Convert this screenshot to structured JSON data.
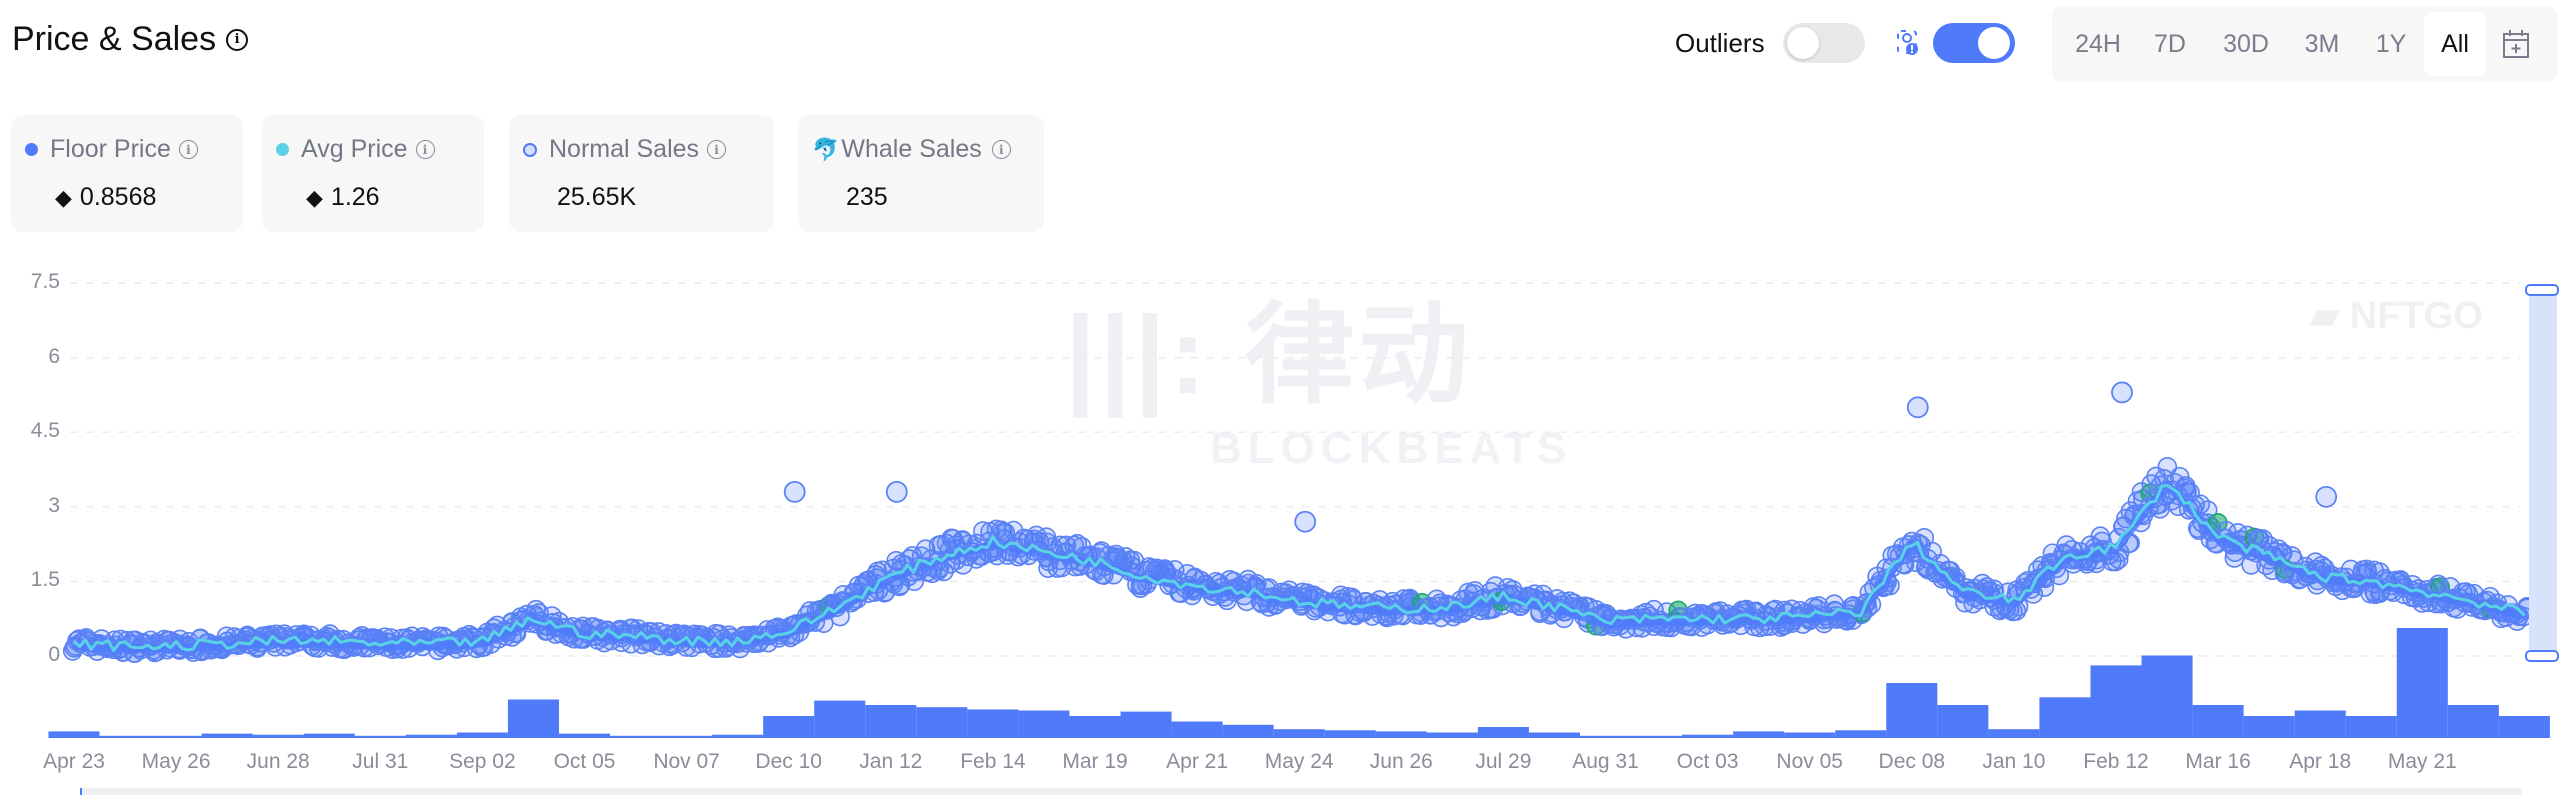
{
  "header": {
    "title": "Price & Sales",
    "info_icon": "info-icon",
    "outliers_label": "Outliers",
    "outliers_enabled": false,
    "whale_filter_enabled": true,
    "whale_filter_icon": "whale-alert-icon",
    "time_ranges": [
      "24H",
      "7D",
      "30D",
      "3M",
      "1Y",
      "All"
    ],
    "active_range": "All",
    "calendar_icon": "calendar-add-icon"
  },
  "cards": [
    {
      "label": "Floor Price",
      "value": "0.8568",
      "prefix_icon": "eth-icon",
      "marker": "dot",
      "color": "#4f7bfb"
    },
    {
      "label": "Avg Price",
      "value": "1.26",
      "prefix_icon": "eth-icon",
      "marker": "dot",
      "color": "#5ad2e6"
    },
    {
      "label": "Normal Sales",
      "value": "25.65K",
      "marker": "ring",
      "color": "#4f7bfb"
    },
    {
      "label": "Whale Sales",
      "value": "235",
      "marker": "whale-icon",
      "color": "#4f7bfb"
    }
  ],
  "watermarks": [
    "律动 BLOCKBEATS",
    "NFTGO"
  ],
  "chart_data": {
    "type": "scatter+line+bar",
    "y_ticks": [
      "0",
      "1.5",
      "3",
      "4.5",
      "6",
      "7.5"
    ],
    "ylim": [
      0,
      7.5
    ],
    "grid": true,
    "x_ticks": [
      "Apr 23",
      "May 26",
      "Jun 28",
      "Jul 31",
      "Sep 02",
      "Oct 05",
      "Nov 07",
      "Dec 10",
      "Jan 12",
      "Feb 14",
      "Mar 19",
      "Apr 21",
      "May 24",
      "Jun 26",
      "Jul 29",
      "Aug 31",
      "Oct 03",
      "Nov 05",
      "Dec 08",
      "Jan 10",
      "Feb 12",
      "Mar 16",
      "Apr 18",
      "May 21"
    ],
    "sampling": "two values per x-tick interval, starting at Apr 23",
    "avg_price": [
      0.25,
      0.2,
      0.2,
      0.25,
      0.3,
      0.3,
      0.25,
      0.25,
      0.3,
      0.75,
      0.45,
      0.4,
      0.3,
      0.3,
      0.5,
      1.0,
      1.6,
      2.0,
      2.3,
      2.1,
      1.9,
      1.6,
      1.4,
      1.3,
      1.1,
      1.0,
      0.95,
      1.0,
      1.2,
      1.0,
      0.7,
      0.75,
      0.75,
      0.75,
      0.8,
      0.9,
      2.3,
      1.3,
      1.1,
      2.0,
      2.2,
      3.5,
      2.4,
      2.0,
      1.6,
      1.5,
      1.3,
      1.1,
      0.86
    ],
    "relative_volume": [
      0.06,
      0.02,
      0.02,
      0.04,
      0.03,
      0.04,
      0.02,
      0.03,
      0.05,
      0.35,
      0.04,
      0.02,
      0.02,
      0.03,
      0.2,
      0.34,
      0.3,
      0.28,
      0.26,
      0.25,
      0.2,
      0.24,
      0.15,
      0.12,
      0.08,
      0.07,
      0.06,
      0.05,
      0.1,
      0.05,
      0.02,
      0.02,
      0.03,
      0.06,
      0.05,
      0.07,
      0.5,
      0.3,
      0.08,
      0.37,
      0.66,
      0.75,
      0.3,
      0.2,
      0.25,
      0.2,
      1.0,
      0.3,
      0.2
    ],
    "notable_sales": [
      {
        "tick": "Dec 08",
        "price": 5.0
      },
      {
        "tick": "Feb 12",
        "price": 5.3
      },
      {
        "tick": "Jan 12",
        "price": 3.3
      },
      {
        "tick": "Dec 10",
        "price": 3.3
      },
      {
        "tick": "May 24",
        "price": 2.7
      },
      {
        "tick": "Apr 18",
        "price": 3.2
      }
    ],
    "legend": [
      "Floor Price",
      "Avg Price",
      "Normal Sales",
      "Whale Sales"
    ]
  }
}
